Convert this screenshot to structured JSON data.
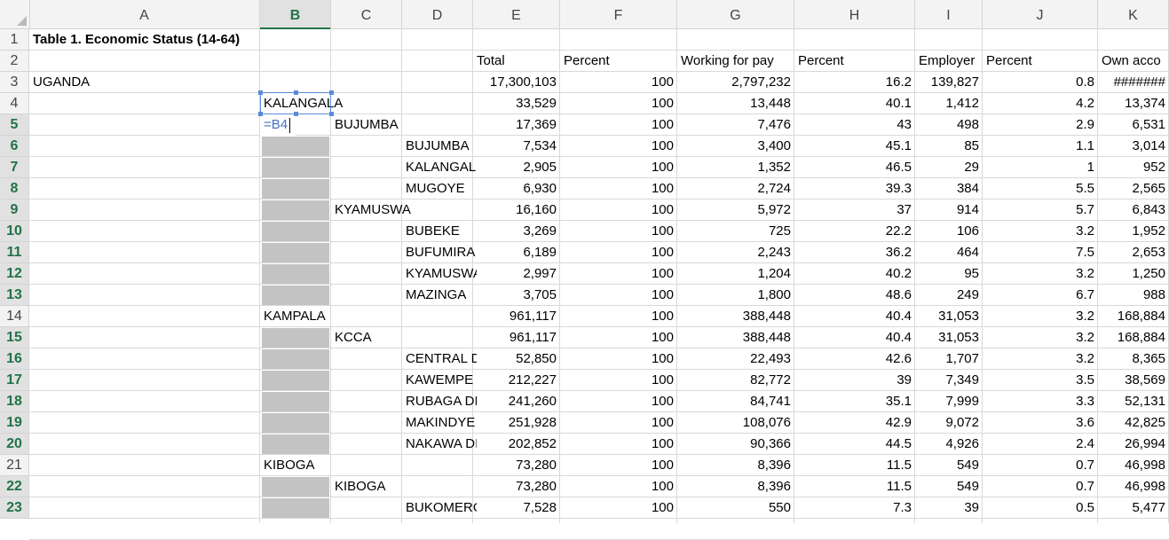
{
  "columns": [
    "A",
    "B",
    "C",
    "D",
    "E",
    "F",
    "G",
    "H",
    "I",
    "J",
    "K"
  ],
  "selected_column": "B",
  "rows": [
    "1",
    "2",
    "3",
    "4",
    "5",
    "6",
    "7",
    "8",
    "9",
    "10",
    "11",
    "12",
    "13",
    "14",
    "15",
    "16",
    "17",
    "18",
    "19",
    "20",
    "21",
    "22",
    "23"
  ],
  "highlighted_rows": [
    5,
    6,
    7,
    8,
    9,
    10,
    11,
    12,
    13,
    15,
    16,
    17,
    18,
    19,
    20,
    22,
    23
  ],
  "title": "Table 1. Economic Status (14-64)",
  "headers": {
    "total": "Total",
    "percent1": "Percent",
    "working_for_pay": "Working for pay",
    "percent2": "Percent",
    "employer": "Employer",
    "percent3": "Percent",
    "own_account": "Own acco"
  },
  "editing_formula": "=B4",
  "data_rows": [
    {
      "row": 3,
      "A": "UGANDA",
      "B": "",
      "C": "",
      "D": "",
      "E": "17,300,103",
      "F": "100",
      "G": "2,797,232",
      "H": "16.2",
      "I": "139,827",
      "J": "0.8",
      "K": "#######"
    },
    {
      "row": 4,
      "A": "",
      "B": "KALANGALA",
      "C": "",
      "D": "",
      "E": "33,529",
      "F": "100",
      "G": "13,448",
      "H": "40.1",
      "I": "1,412",
      "J": "4.2",
      "K": "13,374"
    },
    {
      "row": 5,
      "A": "",
      "B": "",
      "C": "BUJUMBA",
      "D": "",
      "E": "17,369",
      "F": "100",
      "G": "7,476",
      "H": "43",
      "I": "498",
      "J": "2.9",
      "K": "6,531"
    },
    {
      "row": 6,
      "A": "",
      "B": "",
      "C": "",
      "D": "BUJUMBA",
      "E": "7,534",
      "F": "100",
      "G": "3,400",
      "H": "45.1",
      "I": "85",
      "J": "1.1",
      "K": "3,014"
    },
    {
      "row": 7,
      "A": "",
      "B": "",
      "C": "",
      "D": "KALANGAL",
      "E": "2,905",
      "F": "100",
      "G": "1,352",
      "H": "46.5",
      "I": "29",
      "J": "1",
      "K": "952"
    },
    {
      "row": 8,
      "A": "",
      "B": "",
      "C": "",
      "D": "MUGOYE",
      "E": "6,930",
      "F": "100",
      "G": "2,724",
      "H": "39.3",
      "I": "384",
      "J": "5.5",
      "K": "2,565"
    },
    {
      "row": 9,
      "A": "",
      "B": "",
      "C": "KYAMUSWA",
      "D": "",
      "E": "16,160",
      "F": "100",
      "G": "5,972",
      "H": "37",
      "I": "914",
      "J": "5.7",
      "K": "6,843"
    },
    {
      "row": 10,
      "A": "",
      "B": "",
      "C": "",
      "D": "BUBEKE",
      "E": "3,269",
      "F": "100",
      "G": "725",
      "H": "22.2",
      "I": "106",
      "J": "3.2",
      "K": "1,952"
    },
    {
      "row": 11,
      "A": "",
      "B": "",
      "C": "",
      "D": "BUFUMIRA",
      "E": "6,189",
      "F": "100",
      "G": "2,243",
      "H": "36.2",
      "I": "464",
      "J": "7.5",
      "K": "2,653"
    },
    {
      "row": 12,
      "A": "",
      "B": "",
      "C": "",
      "D": "KYAMUSWA",
      "E": "2,997",
      "F": "100",
      "G": "1,204",
      "H": "40.2",
      "I": "95",
      "J": "3.2",
      "K": "1,250"
    },
    {
      "row": 13,
      "A": "",
      "B": "",
      "C": "",
      "D": "MAZINGA",
      "E": "3,705",
      "F": "100",
      "G": "1,800",
      "H": "48.6",
      "I": "249",
      "J": "6.7",
      "K": "988"
    },
    {
      "row": 14,
      "A": "",
      "B": "KAMPALA",
      "C": "",
      "D": "",
      "E": "961,117",
      "F": "100",
      "G": "388,448",
      "H": "40.4",
      "I": "31,053",
      "J": "3.2",
      "K": "168,884"
    },
    {
      "row": 15,
      "A": "",
      "B": "",
      "C": "KCCA",
      "D": "",
      "E": "961,117",
      "F": "100",
      "G": "388,448",
      "H": "40.4",
      "I": "31,053",
      "J": "3.2",
      "K": "168,884"
    },
    {
      "row": 16,
      "A": "",
      "B": "",
      "C": "",
      "D": "CENTRAL DIVISION",
      "E": "52,850",
      "F": "100",
      "G": "22,493",
      "H": "42.6",
      "I": "1,707",
      "J": "3.2",
      "K": "8,365"
    },
    {
      "row": 17,
      "A": "",
      "B": "",
      "C": "",
      "D": "KAWEMPE",
      "E": "212,227",
      "F": "100",
      "G": "82,772",
      "H": "39",
      "I": "7,349",
      "J": "3.5",
      "K": "38,569"
    },
    {
      "row": 18,
      "A": "",
      "B": "",
      "C": "",
      "D": "RUBAGA DIVISION",
      "E": "241,260",
      "F": "100",
      "G": "84,741",
      "H": "35.1",
      "I": "7,999",
      "J": "3.3",
      "K": "52,131"
    },
    {
      "row": 19,
      "A": "",
      "B": "",
      "C": "",
      "D": "MAKINDYE",
      "E": "251,928",
      "F": "100",
      "G": "108,076",
      "H": "42.9",
      "I": "9,072",
      "J": "3.6",
      "K": "42,825"
    },
    {
      "row": 20,
      "A": "",
      "B": "",
      "C": "",
      "D": "NAKAWA DIVISION",
      "E": "202,852",
      "F": "100",
      "G": "90,366",
      "H": "44.5",
      "I": "4,926",
      "J": "2.4",
      "K": "26,994"
    },
    {
      "row": 21,
      "A": "",
      "B": "KIBOGA",
      "C": "",
      "D": "",
      "E": "73,280",
      "F": "100",
      "G": "8,396",
      "H": "11.5",
      "I": "549",
      "J": "0.7",
      "K": "46,998"
    },
    {
      "row": 22,
      "A": "",
      "B": "",
      "C": "KIBOGA",
      "D": "",
      "E": "73,280",
      "F": "100",
      "G": "8,396",
      "H": "11.5",
      "I": "549",
      "J": "0.7",
      "K": "46,998"
    },
    {
      "row": 23,
      "A": "",
      "B": "",
      "C": "",
      "D": "BUKOMERO",
      "E": "7,528",
      "F": "100",
      "G": "550",
      "H": "7.3",
      "I": "39",
      "J": "0.5",
      "K": "5,477"
    }
  ],
  "shaded_rows_col_B": [
    6,
    7,
    8,
    9,
    10,
    11,
    12,
    13,
    15,
    16,
    17,
    18,
    19,
    20,
    22,
    23
  ],
  "colors": {
    "accent_green": "#217346",
    "selection_blue": "#5b8bd9",
    "shade_gray": "#c3c3c3"
  }
}
